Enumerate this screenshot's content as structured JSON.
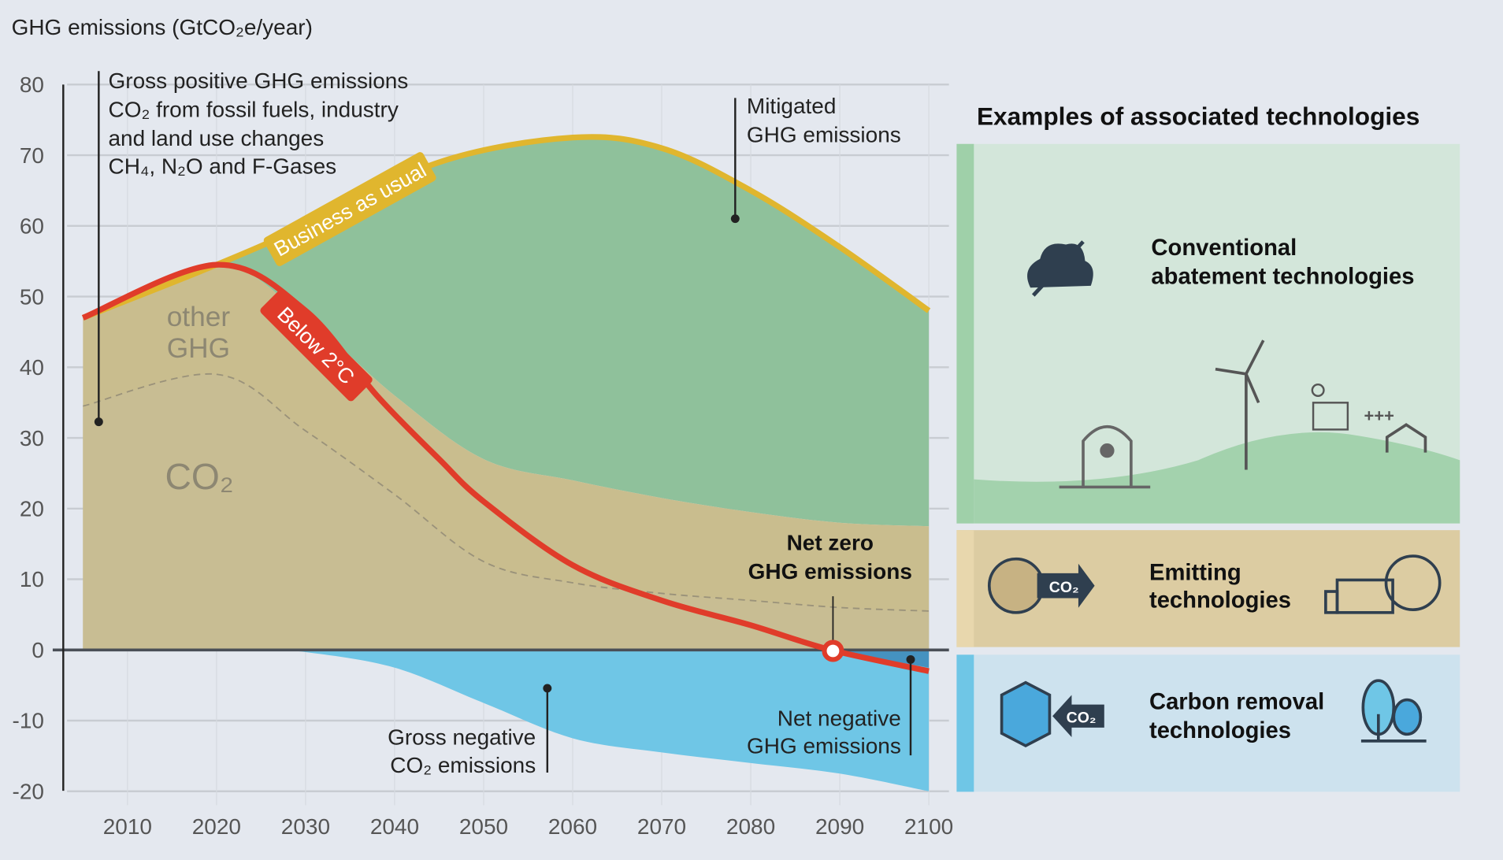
{
  "chart_data": {
    "type": "area",
    "ylabel": "GHG emissions (GtCO₂e/year)",
    "ylim": [
      -20,
      80
    ],
    "yticks": [
      "80",
      "70",
      "60",
      "50",
      "40",
      "30",
      "20",
      "10",
      "0",
      "-10",
      "-20"
    ],
    "ytick_values": [
      80,
      70,
      60,
      50,
      40,
      30,
      20,
      10,
      0,
      -10,
      -20
    ],
    "xlim": [
      2005,
      2100
    ],
    "xticks": [
      "2010",
      "2020",
      "2030",
      "2040",
      "2050",
      "2060",
      "2070",
      "2080",
      "2090",
      "2100"
    ],
    "xtick_values": [
      2010,
      2020,
      2030,
      2040,
      2050,
      2060,
      2070,
      2080,
      2090,
      2100
    ],
    "grid": true,
    "series": [
      {
        "name": "Business as usual",
        "color": "#e0b62e",
        "x": [
          2005,
          2020,
          2030,
          2045,
          2060,
          2070,
          2080,
          2090,
          2100
        ],
        "y": [
          47,
          54.5,
          60,
          69,
          72.5,
          71,
          65,
          57,
          48
        ]
      },
      {
        "name": "Below 2°C",
        "color": "#e03c2a",
        "x": [
          2005,
          2020,
          2030,
          2038,
          2045,
          2050,
          2060,
          2070,
          2080,
          2089,
          2100
        ],
        "y": [
          47,
          54.5,
          48,
          36,
          27,
          21,
          12,
          7,
          3.5,
          0,
          -3
        ]
      },
      {
        "name": "Gross positive GHG emissions",
        "color": "#c9bd8e",
        "x": [
          2005,
          2020,
          2030,
          2040,
          2050,
          2060,
          2070,
          2080,
          2090,
          2100
        ],
        "y": [
          47,
          54.5,
          47,
          36,
          27,
          24,
          21.5,
          19.5,
          18,
          17.5
        ]
      },
      {
        "name": "CO₂",
        "color": "#9a927a",
        "x": [
          2005,
          2020,
          2030,
          2040,
          2050,
          2060,
          2070,
          2080,
          2090,
          2100
        ],
        "y": [
          34.5,
          39,
          31,
          22,
          12.5,
          9.5,
          8,
          7,
          6,
          5.5
        ]
      },
      {
        "name": "Gross negative CO₂ emissions",
        "color": "#6fc6e6",
        "x": [
          2025,
          2030,
          2040,
          2050,
          2060,
          2070,
          2080,
          2090,
          2100
        ],
        "y": [
          0,
          -0.3,
          -2.5,
          -7.5,
          -12.5,
          -14.5,
          -16,
          -17.5,
          -20
        ]
      }
    ],
    "net_zero_year": 2089,
    "annotations": {
      "gross_positive": [
        "Gross positive GHG emissions",
        "CO₂ from fossil fuels, industry",
        "and land use changes",
        "CH₄, N₂O and F-Gases"
      ],
      "mitigated": [
        "Mitigated",
        "GHG emissions"
      ],
      "other_ghg": [
        "other",
        "GHG"
      ],
      "co2": "CO₂",
      "bau_label": "Business as usual",
      "below2_label": "Below 2°C",
      "net_zero": [
        "Net zero",
        "GHG emissions"
      ],
      "gross_negative": [
        "Gross negative",
        "CO₂ emissions"
      ],
      "net_negative": [
        "Net negative",
        "GHG emissions"
      ]
    }
  },
  "panel": {
    "title": "Examples of associated technologies",
    "sections": [
      {
        "label": [
          "Conventional",
          "abatement technologies"
        ],
        "color": "#d3e6da",
        "stripe": "#9fd0a9",
        "icon": "co2-crossed-cloud-icon"
      },
      {
        "label": [
          "Emitting",
          "technologies"
        ],
        "color": "#dccca2",
        "stripe": "#e8d7ad",
        "icon": "co2-emission-arrow-icon"
      },
      {
        "label": [
          "Carbon removal",
          "technologies"
        ],
        "color": "#cde2ee",
        "stripe": "#6fc6e6",
        "icon": "co2-capture-arrow-icon"
      }
    ],
    "co2_badge": "CO₂",
    "plus_marks": "+++"
  }
}
